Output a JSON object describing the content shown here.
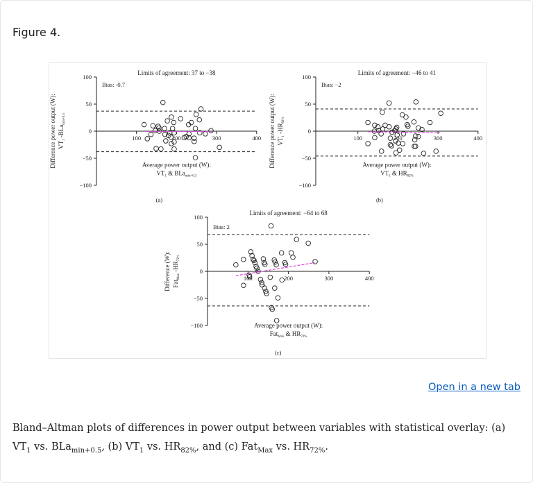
{
  "figure_title": "Figure 4.",
  "open_link": "Open in a new tab",
  "caption": [
    {
      "t": "Bland–Altman plots of differences in power output between variables with statistical overlay: (a) VT"
    },
    {
      "sub": "1"
    },
    {
      "t": " vs. BLa"
    },
    {
      "sub": "min+0.5"
    },
    {
      "t": ", (b) VT"
    },
    {
      "sub": "1"
    },
    {
      "t": " vs. HR"
    },
    {
      "sub": "82%"
    },
    {
      "t": ", and (c) Fat"
    },
    {
      "sub": "Max"
    },
    {
      "t": " vs. HR"
    },
    {
      "sub": "72%"
    },
    {
      "t": "."
    }
  ],
  "colors": {
    "points": "#222222",
    "limits": "#222222",
    "bias_line": "#e040e0",
    "link": "#0b5cc0"
  },
  "chart_data": [
    {
      "type": "scatter",
      "panel_label": "(a)",
      "title": "Limits of agreement: 37 to −38",
      "bias_text": "Bias: -0.7",
      "ylabel": [
        "Difference power output (W):",
        [
          [
            "VT",
            ""
          ],
          [
            "1",
            "sub"
          ],
          [
            " -BLa",
            ""
          ],
          [
            "min+0.5",
            "sub"
          ]
        ]
      ],
      "xlabel": [
        "Average power output (W):",
        [
          [
            "VT",
            ""
          ],
          [
            "1",
            "sub"
          ],
          [
            " & BLa",
            ""
          ],
          [
            "min+0.5",
            "sub"
          ]
        ]
      ],
      "xlim": [
        0,
        400
      ],
      "ylim": [
        -100,
        100
      ],
      "xticks": [
        100,
        200,
        300,
        400
      ],
      "yticks": [
        100,
        50,
        0,
        -50,
        -100
      ],
      "limits": [
        37,
        -38
      ],
      "bias_line": {
        "x": [
          125,
          290
        ],
        "y": [
          -0.7,
          -0.7
        ]
      },
      "points": [
        [
          119,
          12
        ],
        [
          127,
          -14
        ],
        [
          136,
          -6
        ],
        [
          141,
          10
        ],
        [
          147,
          1
        ],
        [
          149,
          -32
        ],
        [
          154,
          9
        ],
        [
          156,
          6
        ],
        [
          157,
          0
        ],
        [
          161,
          -33
        ],
        [
          166,
          53
        ],
        [
          170,
          5
        ],
        [
          171,
          -6
        ],
        [
          173,
          -18
        ],
        [
          177,
          19
        ],
        [
          180,
          -8
        ],
        [
          183,
          -3
        ],
        [
          186,
          -11
        ],
        [
          187,
          26
        ],
        [
          187,
          -23
        ],
        [
          190,
          5
        ],
        [
          193,
          16
        ],
        [
          194,
          -3
        ],
        [
          194,
          -20
        ],
        [
          194,
          -33
        ],
        [
          210,
          23
        ],
        [
          219,
          -12
        ],
        [
          224,
          -10
        ],
        [
          230,
          12
        ],
        [
          231,
          -5
        ],
        [
          231,
          -12
        ],
        [
          237,
          16
        ],
        [
          244,
          -13
        ],
        [
          244,
          -19
        ],
        [
          247,
          5
        ],
        [
          249,
          31
        ],
        [
          247,
          -49
        ],
        [
          257,
          21
        ],
        [
          258,
          -3
        ],
        [
          261,
          41
        ],
        [
          272,
          -5
        ],
        [
          286,
          1
        ],
        [
          307,
          -30
        ]
      ]
    },
    {
      "type": "scatter",
      "panel_label": "(b)",
      "title": "Limits of agreement: −46 to 41",
      "bias_text": "Bias: −2",
      "ylabel": [
        "Difference power output (W):",
        [
          [
            "VT",
            ""
          ],
          [
            "1",
            "sub"
          ],
          [
            " -HR",
            ""
          ],
          [
            "82%",
            "sub"
          ]
        ]
      ],
      "xlabel": [
        "Average power output (W):",
        [
          [
            "VT",
            ""
          ],
          [
            "1",
            "sub"
          ],
          [
            " & HR",
            ""
          ],
          [
            "82%",
            "sub"
          ]
        ]
      ],
      "xlim": [
        0,
        400
      ],
      "ylim": [
        -100,
        100
      ],
      "xticks": [
        100,
        200,
        300,
        400
      ],
      "yticks": [
        100,
        50,
        0,
        -50,
        -100
      ],
      "limits": [
        41,
        -46
      ],
      "bias_line": {
        "x": [
          125,
          305
        ],
        "y": [
          -1,
          -3
        ]
      },
      "points": [
        [
          125,
          16
        ],
        [
          125,
          -23
        ],
        [
          141,
          0
        ],
        [
          142,
          11
        ],
        [
          142,
          -12
        ],
        [
          150,
          8
        ],
        [
          152,
          1
        ],
        [
          158,
          -5
        ],
        [
          159,
          -37
        ],
        [
          161,
          35
        ],
        [
          162,
          4
        ],
        [
          168,
          11
        ],
        [
          178,
          52
        ],
        [
          178,
          8
        ],
        [
          181,
          -13
        ],
        [
          181,
          -25
        ],
        [
          184,
          -27
        ],
        [
          185,
          -2
        ],
        [
          192,
          1
        ],
        [
          194,
          -18
        ],
        [
          195,
          4
        ],
        [
          195,
          -40
        ],
        [
          197,
          7
        ],
        [
          198,
          -7
        ],
        [
          201,
          -22
        ],
        [
          204,
          -35
        ],
        [
          211,
          30
        ],
        [
          214,
          -5
        ],
        [
          212,
          -23
        ],
        [
          220,
          26
        ],
        [
          223,
          12
        ],
        [
          225,
          9
        ],
        [
          240,
          17
        ],
        [
          241,
          -28
        ],
        [
          242,
          -16
        ],
        [
          244,
          -9
        ],
        [
          244,
          -28
        ],
        [
          245,
          54
        ],
        [
          251,
          6
        ],
        [
          251,
          -10
        ],
        [
          260,
          3
        ],
        [
          264,
          -41
        ],
        [
          280,
          16
        ],
        [
          295,
          -37
        ],
        [
          307,
          33
        ]
      ]
    },
    {
      "type": "scatter",
      "panel_label": "(c)",
      "title": "Limits of agreement: −64 to 68",
      "bias_text": "Bias: 2",
      "ylabel": [
        "Difference (W):",
        [
          [
            "Fat",
            ""
          ],
          [
            "Max",
            "sub"
          ],
          [
            " -HR",
            ""
          ],
          [
            "72%",
            "sub"
          ]
        ]
      ],
      "xlabel": [
        "Average power output (W):",
        [
          [
            "Fat",
            ""
          ],
          [
            "Max",
            "sub"
          ],
          [
            " & HR",
            ""
          ],
          [
            "72%",
            "sub"
          ]
        ]
      ],
      "xlim": [
        0,
        400
      ],
      "ylim": [
        -100,
        100
      ],
      "xticks": [
        100,
        200,
        300,
        400
      ],
      "yticks": [
        100,
        50,
        0,
        -50,
        -100
      ],
      "limits": [
        68,
        -64
      ],
      "bias_line": {
        "x": [
          70,
          265
        ],
        "y": [
          -8,
          16
        ]
      },
      "points": [
        [
          70,
          12
        ],
        [
          89,
          22
        ],
        [
          89,
          -26
        ],
        [
          103,
          -7
        ],
        [
          104,
          -10
        ],
        [
          107,
          36
        ],
        [
          110,
          29
        ],
        [
          113,
          22
        ],
        [
          115,
          20
        ],
        [
          117,
          16
        ],
        [
          120,
          9
        ],
        [
          122,
          6
        ],
        [
          125,
          0
        ],
        [
          131,
          -15
        ],
        [
          134,
          -21
        ],
        [
          135,
          -25
        ],
        [
          138,
          23
        ],
        [
          140,
          16
        ],
        [
          141,
          -31
        ],
        [
          142,
          13
        ],
        [
          144,
          -37
        ],
        [
          146,
          -41
        ],
        [
          155,
          -11
        ],
        [
          157,
          84
        ],
        [
          158,
          -67
        ],
        [
          160,
          -70
        ],
        [
          165,
          21
        ],
        [
          166,
          -31
        ],
        [
          167,
          17
        ],
        [
          170,
          12
        ],
        [
          171,
          -91
        ],
        [
          174,
          -49
        ],
        [
          183,
          34
        ],
        [
          184,
          -16
        ],
        [
          191,
          16
        ],
        [
          193,
          13
        ],
        [
          207,
          34
        ],
        [
          211,
          26
        ],
        [
          220,
          59
        ],
        [
          249,
          52
        ],
        [
          266,
          18
        ]
      ]
    }
  ]
}
